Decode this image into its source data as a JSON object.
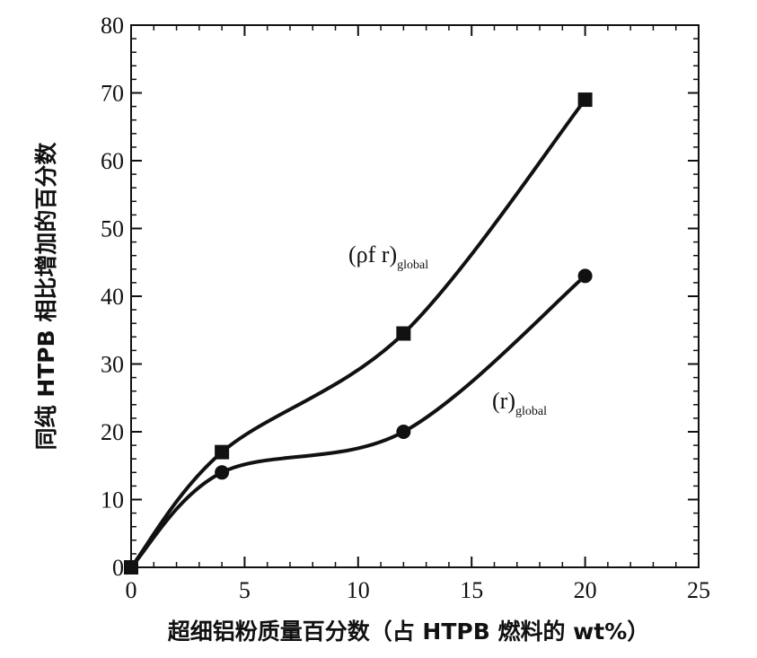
{
  "chart_data": {
    "type": "line",
    "title": "",
    "xlabel": "超细铝粉质量百分数（占 HTPB 燃料的 wt%）",
    "ylabel": "同纯 HTPB 相比增加的百分数",
    "xlim": [
      0,
      25
    ],
    "ylim": [
      0,
      80
    ],
    "x_ticks": [
      "0",
      "5",
      "10",
      "15",
      "20",
      "25"
    ],
    "y_ticks": [
      "0",
      "10",
      "20",
      "30",
      "40",
      "50",
      "60",
      "70",
      "80"
    ],
    "grid": false,
    "legend": "none",
    "series": [
      {
        "label_main": "(ρf r)",
        "label_sub": "global",
        "marker": "square",
        "color": "#111111",
        "x": [
          0,
          4,
          12,
          20
        ],
        "y": [
          0,
          17,
          34.5,
          69
        ]
      },
      {
        "label_main": "(r)",
        "label_sub": "global",
        "marker": "circle",
        "color": "#111111",
        "x": [
          0,
          4,
          12,
          20
        ],
        "y": [
          0,
          14,
          20,
          43
        ]
      }
    ]
  }
}
